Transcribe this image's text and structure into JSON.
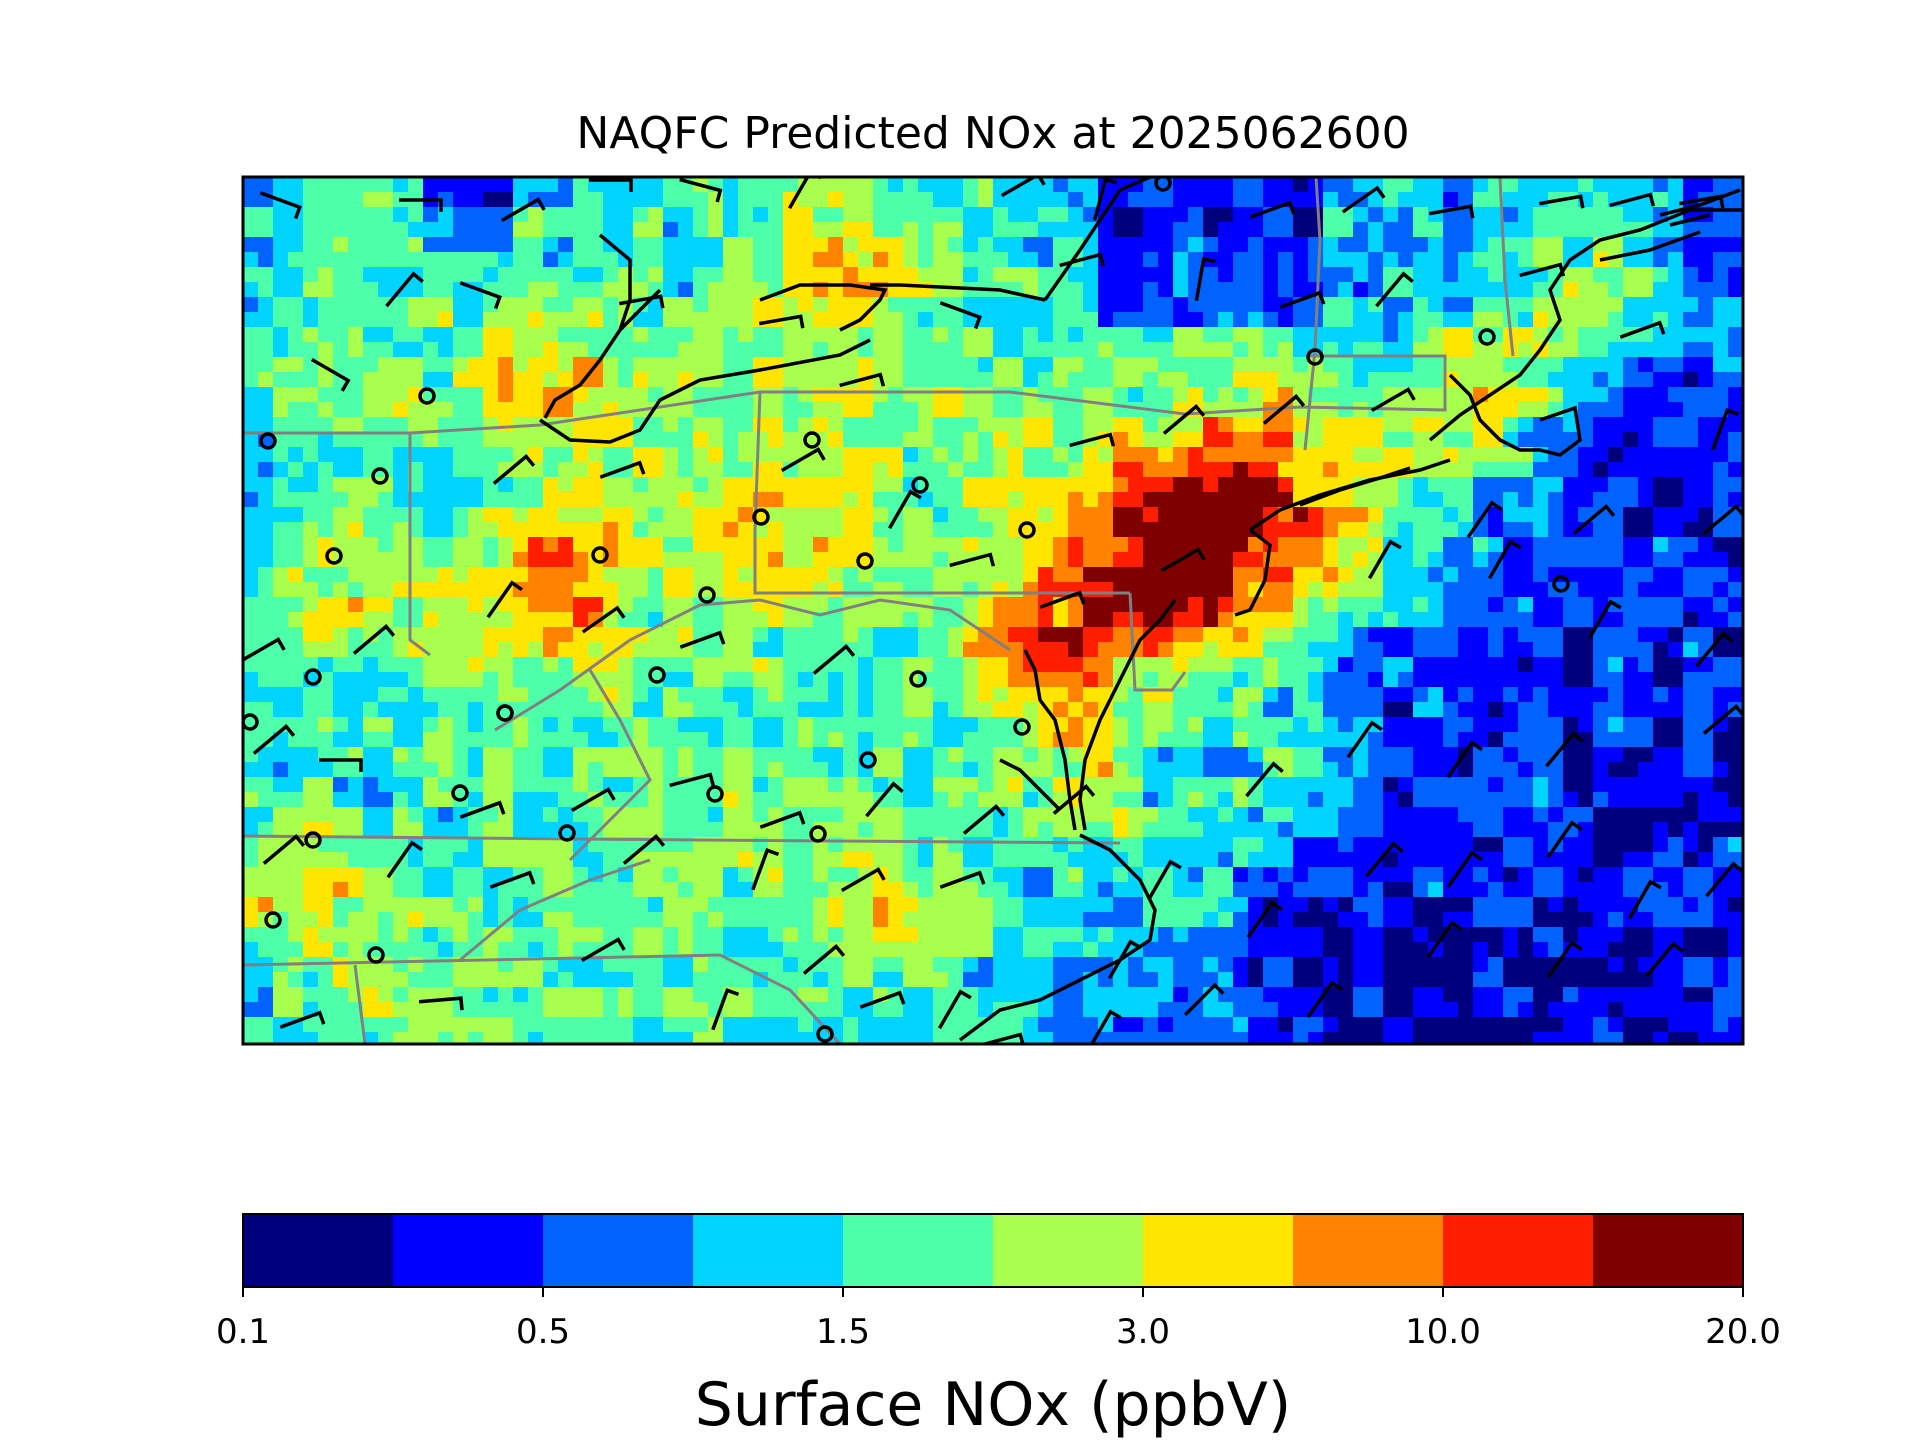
{
  "title": "NAQFC Predicted NOx at 2025062600",
  "colorbar": {
    "label": "Surface NOx (ppbV)",
    "tick_labels": [
      "0.1",
      "0.5",
      "1.5",
      "3.0",
      "10.0",
      "20.0"
    ],
    "colors": [
      "#00007f",
      "#0000ff",
      "#0063ff",
      "#00d4ff",
      "#4effa9",
      "#a9ff4e",
      "#ffe500",
      "#ff8200",
      "#ff1e00",
      "#7f0000"
    ]
  },
  "chart_data": {
    "type": "heatmap",
    "title": "NAQFC Predicted NOx at 2025062600",
    "colorbar_label": "Surface NOx (ppbV)",
    "colorbar_ticks": [
      0.1,
      0.5,
      1.5,
      3.0,
      10.0,
      20.0
    ],
    "colormap": "jet",
    "levels": 10,
    "overlays": [
      "state boundaries",
      "coastlines",
      "wind barbs",
      "station circles"
    ]
  }
}
